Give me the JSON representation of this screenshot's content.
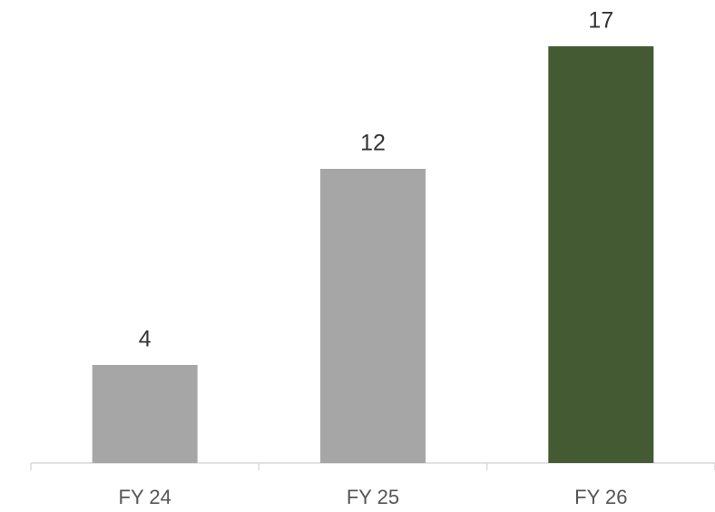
{
  "chart_data": {
    "type": "bar",
    "categories": [
      "FY 24",
      "FY 25",
      "FY 26"
    ],
    "values": [
      4,
      12,
      17
    ],
    "colors": [
      "#a6a6a6",
      "#a6a6a6",
      "#435a32"
    ],
    "data_labels": true
  }
}
